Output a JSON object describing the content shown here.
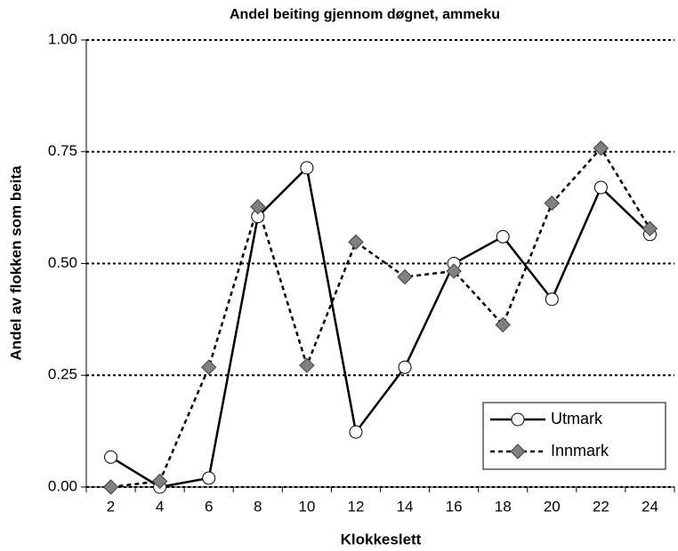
{
  "chart_data": {
    "type": "line",
    "title": "Andel beiting gjennom døgnet, ammeku",
    "x_label": "Klokkeslett",
    "y_label": "Andel av flokken som beita",
    "categories": [
      "2",
      "4",
      "6",
      "8",
      "10",
      "12",
      "14",
      "16",
      "18",
      "20",
      "22",
      "24"
    ],
    "series": [
      {
        "name": "Utmark",
        "color": "#000000",
        "dash": "solid",
        "marker": "circle",
        "values": [
          0.067,
          0.0,
          0.02,
          0.605,
          0.714,
          0.123,
          0.268,
          0.5,
          0.56,
          0.42,
          0.67,
          0.565
        ]
      },
      {
        "name": "Innmark",
        "color": "#000000",
        "dash": "dashed",
        "marker": "diamond",
        "values": [
          0.0,
          0.013,
          0.268,
          0.627,
          0.272,
          0.548,
          0.47,
          0.483,
          0.363,
          0.635,
          0.758,
          0.578
        ]
      }
    ],
    "ylim": [
      0,
      1
    ],
    "yticks": [
      {
        "value": 0,
        "label": "0.00"
      },
      {
        "value": 0.25,
        "label": "0.25"
      },
      {
        "value": 0.5,
        "label": "0.50"
      },
      {
        "value": 0.75,
        "label": "0.75"
      },
      {
        "value": 1,
        "label": "1.00"
      }
    ],
    "grid": true,
    "legend": "lower right"
  }
}
